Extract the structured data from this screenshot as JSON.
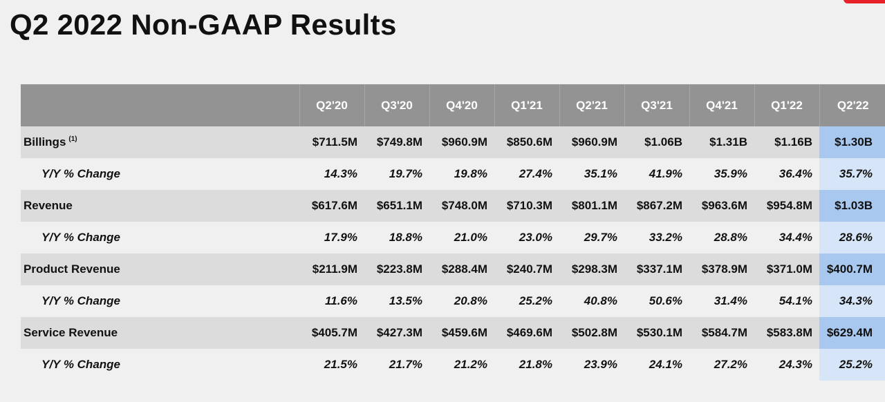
{
  "title": "Q2 2022 Non-GAAP Results",
  "accent_color": "#e8222a",
  "highlight_colors": {
    "metric": "#a8c8ef",
    "change": "#d6e5f7"
  },
  "table": {
    "columns": [
      "Q2'20",
      "Q3'20",
      "Q4'20",
      "Q1'21",
      "Q2'21",
      "Q3'21",
      "Q4'21",
      "Q1'22",
      "Q2'22"
    ],
    "highlighted_column": "Q2'22",
    "rows": [
      {
        "label": "Billings",
        "footnote": "(1)",
        "values": [
          "$711.5M",
          "$749.8M",
          "$960.9M",
          "$850.6M",
          "$960.9M",
          "$1.06B",
          "$1.31B",
          "$1.16B",
          "$1.30B"
        ],
        "change_label": "Y/Y % Change",
        "change": [
          "14.3%",
          "19.7%",
          "19.8%",
          "27.4%",
          "35.1%",
          "41.9%",
          "35.9%",
          "36.4%",
          "35.7%"
        ]
      },
      {
        "label": "Revenue",
        "footnote": "",
        "values": [
          "$617.6M",
          "$651.1M",
          "$748.0M",
          "$710.3M",
          "$801.1M",
          "$867.2M",
          "$963.6M",
          "$954.8M",
          "$1.03B"
        ],
        "change_label": "Y/Y % Change",
        "change": [
          "17.9%",
          "18.8%",
          "21.0%",
          "23.0%",
          "29.7%",
          "33.2%",
          "28.8%",
          "34.4%",
          "28.6%"
        ]
      },
      {
        "label": "Product Revenue",
        "footnote": "",
        "values": [
          "$211.9M",
          "$223.8M",
          "$288.4M",
          "$240.7M",
          "$298.3M",
          "$337.1M",
          "$378.9M",
          "$371.0M",
          "$400.7M"
        ],
        "change_label": "Y/Y % Change",
        "change": [
          "11.6%",
          "13.5%",
          "20.8%",
          "25.2%",
          "40.8%",
          "50.6%",
          "31.4%",
          "54.1%",
          "34.3%"
        ]
      },
      {
        "label": "Service Revenue",
        "footnote": "",
        "values": [
          "$405.7M",
          "$427.3M",
          "$459.6M",
          "$469.6M",
          "$502.8M",
          "$530.1M",
          "$584.7M",
          "$583.8M",
          "$629.4M"
        ],
        "change_label": "Y/Y % Change",
        "change": [
          "21.5%",
          "21.7%",
          "21.2%",
          "21.8%",
          "23.9%",
          "24.1%",
          "27.2%",
          "24.3%",
          "25.2%"
        ]
      }
    ]
  }
}
